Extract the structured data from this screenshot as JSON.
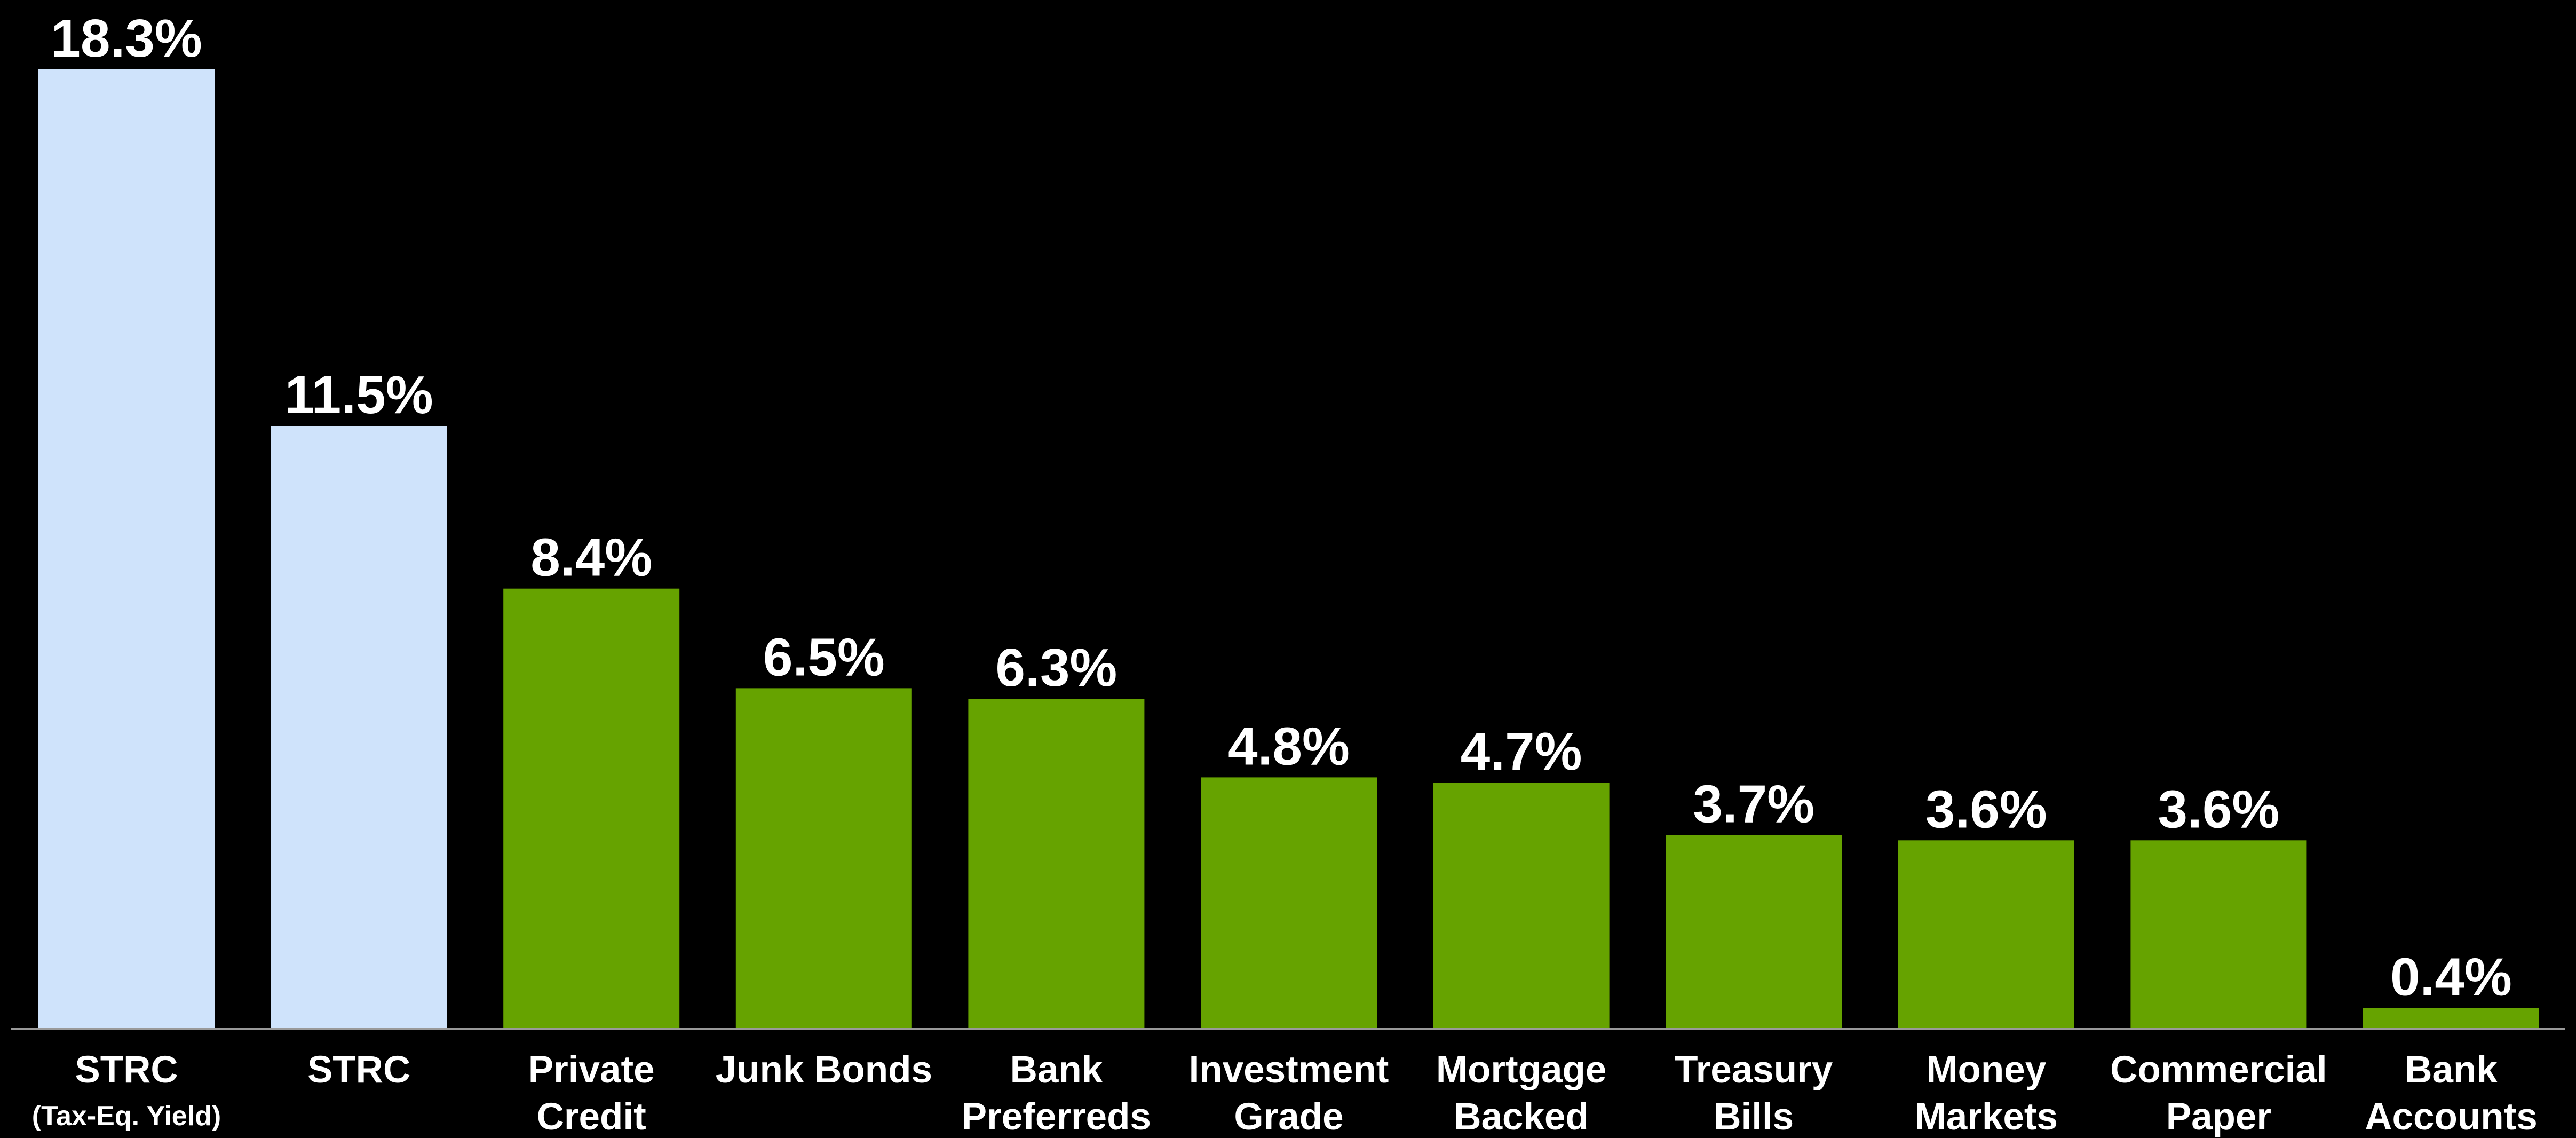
{
  "chart_data": {
    "type": "bar",
    "title": "",
    "xlabel": "",
    "ylabel": "",
    "ylim": [
      0,
      18.3
    ],
    "grid": false,
    "legend": "none",
    "categories": [
      {
        "lines": [
          "STRC"
        ],
        "sub": "(Tax-Eq. Yield)"
      },
      {
        "lines": [
          "STRC"
        ],
        "sub": ""
      },
      {
        "lines": [
          "Private",
          "Credit"
        ],
        "sub": ""
      },
      {
        "lines": [
          "Junk Bonds"
        ],
        "sub": ""
      },
      {
        "lines": [
          "Bank",
          "Preferreds"
        ],
        "sub": ""
      },
      {
        "lines": [
          "Investment",
          "Grade"
        ],
        "sub": ""
      },
      {
        "lines": [
          "Mortgage",
          "Backed"
        ],
        "sub": ""
      },
      {
        "lines": [
          "Treasury",
          "Bills"
        ],
        "sub": ""
      },
      {
        "lines": [
          "Money",
          "Markets"
        ],
        "sub": ""
      },
      {
        "lines": [
          "Commercial",
          "Paper"
        ],
        "sub": ""
      },
      {
        "lines": [
          "Bank",
          "Accounts"
        ],
        "sub": ""
      }
    ],
    "values": [
      18.3,
      11.5,
      8.4,
      6.5,
      6.3,
      4.8,
      4.7,
      3.7,
      3.6,
      3.6,
      0.4
    ],
    "value_labels": [
      "18.3%",
      "11.5%",
      "8.4%",
      "6.5%",
      "6.3%",
      "4.8%",
      "4.7%",
      "3.7%",
      "3.6%",
      "3.6%",
      "0.4%"
    ],
    "bar_colors": [
      "#cfe3fb",
      "#cfe3fb",
      "#66a300",
      "#66a300",
      "#66a300",
      "#66a300",
      "#66a300",
      "#66a300",
      "#66a300",
      "#66a300",
      "#66a300"
    ],
    "colors": {
      "background": "#000000",
      "highlight_bar": "#cfe3fb",
      "comparison_bar": "#66a300",
      "axis": "#9a9a9a",
      "text": "#ffffff"
    }
  }
}
